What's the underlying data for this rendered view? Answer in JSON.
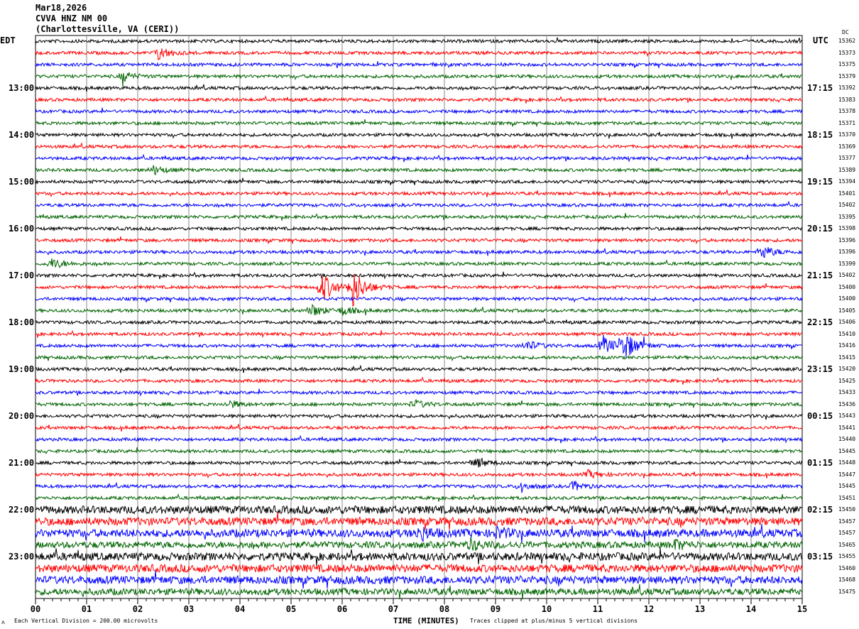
{
  "header": {
    "date": "Mar18,2026",
    "station": "CVVA HNZ NM 00",
    "location": "(Charlottesville, VA (CERI))"
  },
  "left_timezone": "EDT",
  "right_timezone": "UTC",
  "dc_label": "DC",
  "left_hour_labels": [
    "13:00",
    "14:00",
    "15:00",
    "16:00",
    "17:00",
    "18:00",
    "19:00",
    "20:00",
    "21:00",
    "22:00",
    "23:00"
  ],
  "right_hour_labels": [
    "17:15",
    "18:15",
    "19:15",
    "20:15",
    "21:15",
    "22:15",
    "23:15",
    "00:15",
    "01:15",
    "02:15",
    "03:15"
  ],
  "dc_values": [
    "15362",
    "15373",
    "15375",
    "15379",
    "15392",
    "15383",
    "15378",
    "15371",
    "15370",
    "15369",
    "15377",
    "15389",
    "15394",
    "15401",
    "15402",
    "15395",
    "15398",
    "15396",
    "15396",
    "15399",
    "15402",
    "15400",
    "15400",
    "15405",
    "15406",
    "15410",
    "15416",
    "15415",
    "15420",
    "15425",
    "15433",
    "15436",
    "15443",
    "15441",
    "15440",
    "15445",
    "15448",
    "15447",
    "15445",
    "15451",
    "15450",
    "15457",
    "15457",
    "15465",
    "15455",
    "15460",
    "15468",
    "15475"
  ],
  "trace_colors": [
    "#000000",
    "#ff0000",
    "#0000ff",
    "#006400"
  ],
  "chart_data": {
    "type": "line",
    "xlabel": "TIME (MINUTES)",
    "x_ticks": [
      "00",
      "01",
      "02",
      "03",
      "04",
      "05",
      "06",
      "07",
      "08",
      "09",
      "10",
      "11",
      "12",
      "13",
      "14",
      "15"
    ],
    "xlim": [
      0,
      15
    ],
    "trace_count": 48,
    "grid": true
  },
  "footer": {
    "scale": "Each Vertical Division =  200.00 microvolts",
    "clip": "Traces clipped at plus/minus 5 vertical divisions",
    "mark": "ʌ"
  }
}
